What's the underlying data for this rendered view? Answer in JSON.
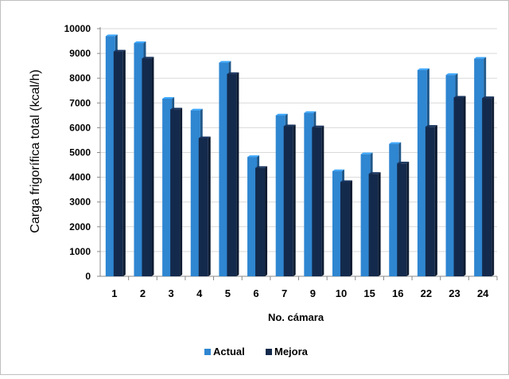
{
  "chart_data": {
    "type": "bar",
    "categories": [
      "1",
      "2",
      "3",
      "4",
      "5",
      "6",
      "7",
      "9",
      "10",
      "15",
      "16",
      "22",
      "23",
      "24"
    ],
    "series": [
      {
        "name": "Actual",
        "color": "#2f86d1",
        "values": [
          9700,
          9420,
          7170,
          6700,
          8630,
          4820,
          6500,
          6600,
          4250,
          4930,
          5350,
          8330,
          8130,
          8790
        ]
      },
      {
        "name": "Mejora",
        "color": "#142a4c",
        "values": [
          9080,
          8800,
          6740,
          5580,
          8170,
          4380,
          6060,
          6020,
          3810,
          4140,
          4560,
          6040,
          7220,
          7200
        ]
      }
    ],
    "title": "",
    "xlabel": "No. cámara",
    "ylabel": "Carga frigorífica total (kcal/h)",
    "ylim": [
      0,
      10000
    ],
    "yticks": [
      0,
      1000,
      2000,
      3000,
      4000,
      5000,
      6000,
      7000,
      8000,
      9000,
      10000
    ],
    "grid": true,
    "legend_position": "bottom"
  }
}
